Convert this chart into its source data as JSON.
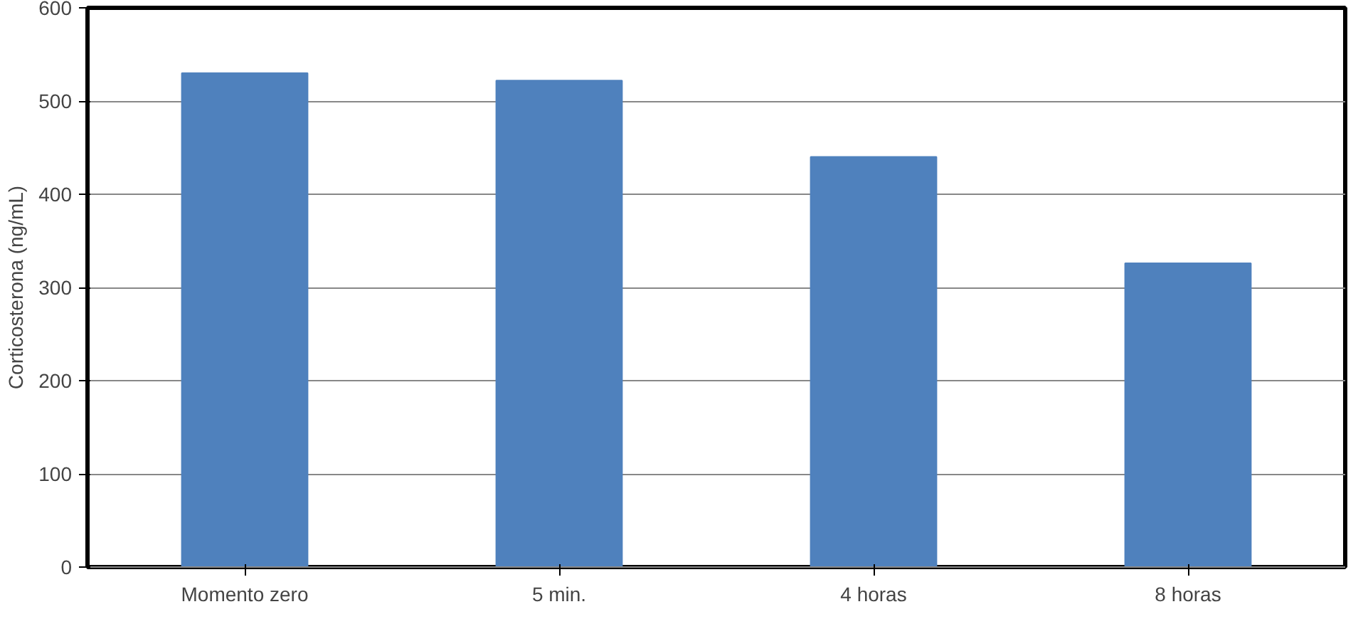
{
  "chart_data": {
    "type": "bar",
    "ylabel": "Corticosterona (ng/mL)",
    "categories": [
      "Momento zero",
      "5 min.",
      "4 horas",
      "8 horas"
    ],
    "values": [
      530,
      522,
      440,
      326
    ],
    "color": "#4f81bd",
    "ylim": [
      0,
      600
    ],
    "yticks": [
      0,
      100,
      200,
      300,
      400,
      500,
      600
    ],
    "grid": "y"
  }
}
